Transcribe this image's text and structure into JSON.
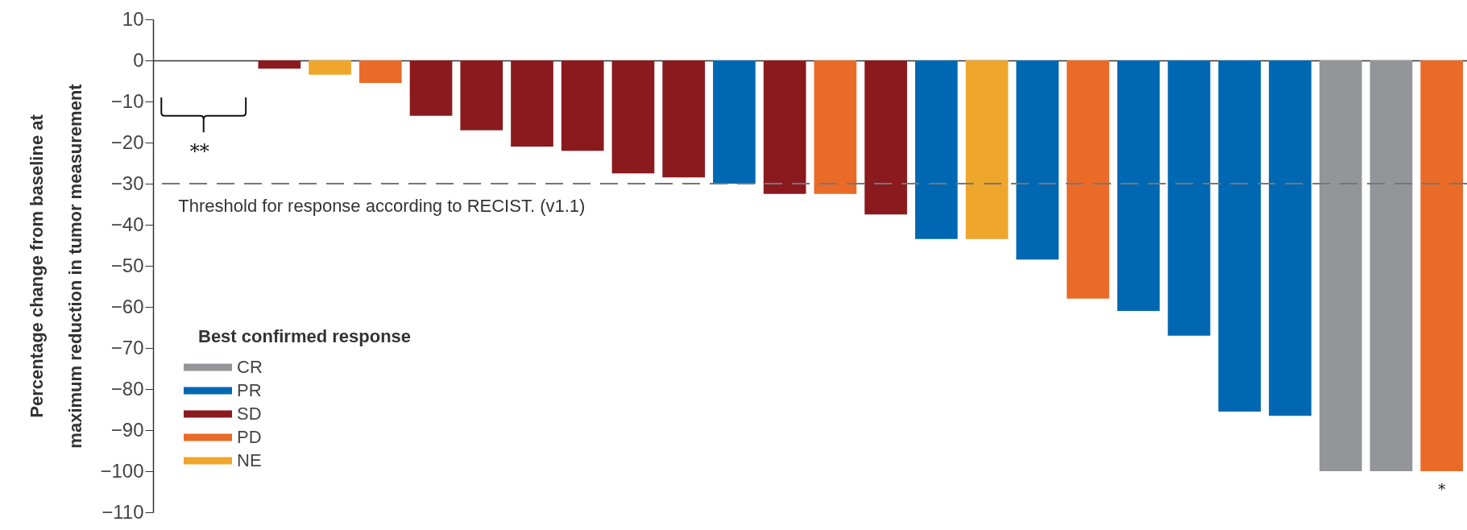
{
  "chart_data": {
    "type": "bar",
    "ylabel": "Percentage change from baseline at\nmaximum reduction in tumor measurement",
    "legend_title": "Best confirmed response",
    "categories": [
      null,
      null,
      null,
      null,
      null,
      null,
      null,
      null,
      null,
      null,
      null,
      null,
      null,
      null,
      null,
      null,
      null,
      null,
      null,
      null,
      null,
      null,
      null,
      null,
      null,
      null
    ],
    "series": [
      {
        "name": "CR",
        "color": "#939598",
        "values": [
          null,
          null,
          null,
          null,
          null,
          null,
          null,
          null,
          null,
          null,
          null,
          null,
          null,
          null,
          null,
          null,
          null,
          null,
          null,
          null,
          null,
          null,
          null,
          -100,
          -100,
          null
        ]
      },
      {
        "name": "PR",
        "color": "#0068b2",
        "values": [
          null,
          null,
          null,
          null,
          null,
          null,
          null,
          null,
          null,
          null,
          null,
          -30,
          null,
          null,
          null,
          -43.5,
          null,
          -48.5,
          null,
          -61,
          -67,
          -85.5,
          -86.5,
          null,
          null,
          null
        ]
      },
      {
        "name": "SD",
        "color": "#8b1a1e",
        "values": [
          null,
          null,
          -2,
          null,
          null,
          -13.5,
          -17,
          -21,
          -22,
          -27.5,
          -28.5,
          null,
          -32.5,
          null,
          -37.5,
          null,
          null,
          null,
          null,
          null,
          null,
          null,
          null,
          null,
          null,
          null
        ]
      },
      {
        "name": "PD",
        "color": "#ea6a28",
        "values": [
          null,
          null,
          null,
          null,
          -5.5,
          null,
          null,
          null,
          null,
          null,
          null,
          null,
          null,
          -32.5,
          null,
          null,
          null,
          null,
          -58,
          null,
          null,
          null,
          null,
          null,
          null,
          -100
        ]
      },
      {
        "name": "NE",
        "color": "#eea62c",
        "values": [
          null,
          null,
          null,
          -3.5,
          null,
          null,
          null,
          null,
          null,
          null,
          null,
          null,
          null,
          null,
          null,
          null,
          -43.5,
          null,
          null,
          null,
          null,
          null,
          null,
          null,
          null,
          null
        ]
      }
    ],
    "ylim": [
      -110,
      10
    ],
    "yticks": [
      10,
      0,
      -10,
      -20,
      -30,
      -40,
      -50,
      -60,
      -70,
      -80,
      -90,
      -100,
      -110
    ],
    "ref_lines": [
      {
        "axis": "y",
        "value": -30,
        "label": "Threshold for response according to RECIST. (v1.1)",
        "color": "#777777",
        "line_style": "dashed"
      }
    ],
    "annotations": [
      "**",
      "*"
    ],
    "legend": "bottom left",
    "tick_labels": "y",
    "grid": false
  }
}
